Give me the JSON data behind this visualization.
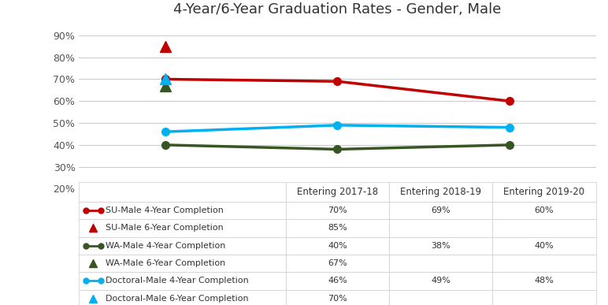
{
  "title": "4-Year/6-Year Graduation Rates - Gender, Male",
  "x_labels": [
    "Entering 2017-18",
    "Entering 2018-19",
    "Entering 2019-20"
  ],
  "series": [
    {
      "label": "SU-Male 4-Year Completion",
      "values": [
        0.7,
        0.69,
        0.6
      ],
      "color": "#c00000",
      "marker": "o",
      "linestyle": "-"
    },
    {
      "label": "WA-Male 4-Year Completion",
      "values": [
        0.4,
        0.38,
        0.4
      ],
      "color": "#375623",
      "marker": "o",
      "linestyle": "-"
    },
    {
      "label": "Doctoral-Male 4-Year Completion",
      "values": [
        0.46,
        0.49,
        0.48
      ],
      "color": "#00b0f0",
      "marker": "o",
      "linestyle": "-"
    }
  ],
  "single_points": [
    {
      "label": "SU-Male 6-Year Completion",
      "x": 0,
      "value": 0.85,
      "color": "#c00000",
      "marker": "^"
    },
    {
      "label": "WA-Male 6-Year Completion",
      "x": 0,
      "value": 0.67,
      "color": "#375623",
      "marker": "^"
    },
    {
      "label": "Doctoral-Male 6-Year Completion",
      "x": 0,
      "value": 0.7,
      "color": "#00b0f0",
      "marker": "^"
    }
  ],
  "table_data": [
    [
      "SU-Male 4-Year Completion",
      "70%",
      "69%",
      "60%"
    ],
    [
      "SU-Male 6-Year Completion",
      "85%",
      "",
      ""
    ],
    [
      "WA-Male 4-Year Completion",
      "40%",
      "38%",
      "40%"
    ],
    [
      "WA-Male 6-Year Completion",
      "67%",
      "",
      ""
    ],
    [
      "Doctoral-Male 4-Year Completion",
      "46%",
      "49%",
      "48%"
    ],
    [
      "Doctoral-Male 6-Year Completion",
      "70%",
      "",
      ""
    ]
  ],
  "table_row_colors": [
    "#c00000",
    "#c00000",
    "#375623",
    "#375623",
    "#00b0f0",
    "#00b0f0"
  ],
  "table_row_markers": [
    "o",
    "^",
    "o",
    "^",
    "o",
    "^"
  ],
  "ylim": [
    0.18,
    0.95
  ],
  "yticks": [
    0.2,
    0.3,
    0.4,
    0.5,
    0.6,
    0.7,
    0.8,
    0.9
  ],
  "background_color": "#ffffff",
  "line_width": 2.5,
  "marker_size": 7
}
